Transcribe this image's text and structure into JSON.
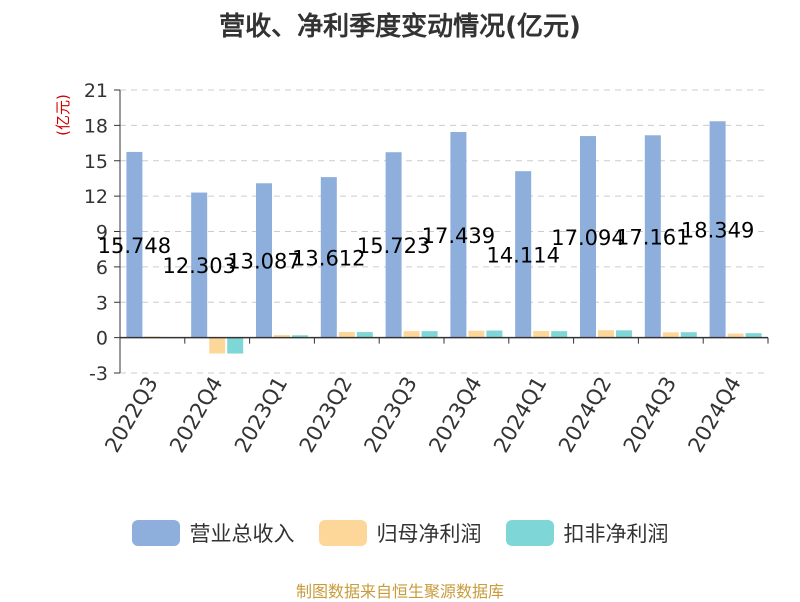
{
  "chart_data": {
    "type": "bar",
    "title": "营收、净利季度变动情况(亿元)",
    "ylabel": "(亿元)",
    "ylim": [
      -3,
      21
    ],
    "yticks": [
      -3,
      0,
      3,
      6,
      9,
      12,
      15,
      18,
      21
    ],
    "grid": true,
    "legend_position": "bottom",
    "categories": [
      "2022Q3",
      "2022Q4",
      "2023Q1",
      "2023Q2",
      "2023Q3",
      "2023Q4",
      "2024Q1",
      "2024Q2",
      "2024Q3",
      "2024Q4"
    ],
    "series": [
      {
        "name": "营业总收入",
        "color": "#8eaedc",
        "values": [
          15.748,
          12.303,
          13.087,
          13.612,
          15.723,
          17.439,
          14.114,
          17.094,
          17.161,
          18.349
        ]
      },
      {
        "name": "归母净利润",
        "color": "#fdd799",
        "values": [
          0.1,
          -1.35,
          0.22,
          0.48,
          0.55,
          0.58,
          0.56,
          0.63,
          0.45,
          0.34
        ]
      },
      {
        "name": "扣非净利润",
        "color": "#7fd6d6",
        "values": [
          0.0,
          -1.35,
          0.2,
          0.47,
          0.55,
          0.6,
          0.55,
          0.62,
          0.46,
          0.38
        ]
      }
    ],
    "data_labels": [
      "15.748",
      "12.303",
      "13.087",
      "13.612",
      "15.723",
      "17.439",
      "14.114",
      "17.094",
      "17.161",
      "18.349"
    ]
  },
  "source": "制图数据来自恒生聚源数据库",
  "colors": {
    "axis": "#333333",
    "grid": "#cccccc",
    "unit": "#cc0000",
    "source": "#c89b3c"
  }
}
